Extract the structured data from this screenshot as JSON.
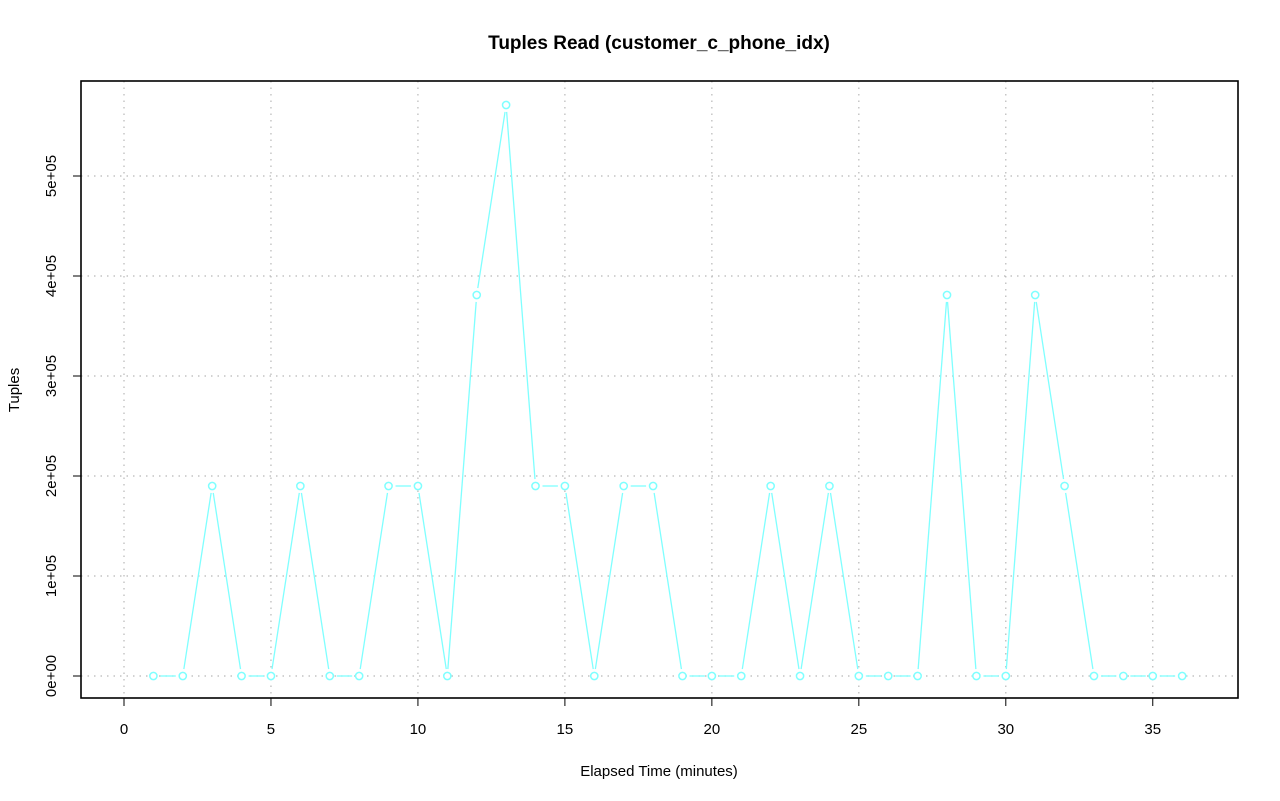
{
  "chart_data": {
    "type": "line",
    "title": "Tuples Read (customer_c_phone_idx)",
    "xlabel": "Elapsed Time (minutes)",
    "ylabel": "Tuples",
    "xlim": [
      0,
      37.9
    ],
    "ylim": [
      -22000,
      595000
    ],
    "x_ticks": [
      0,
      5,
      10,
      15,
      20,
      25,
      30,
      35
    ],
    "x_tick_labels": [
      "0",
      "5",
      "10",
      "15",
      "20",
      "25",
      "30",
      "35"
    ],
    "y_ticks": [
      0,
      100000,
      200000,
      300000,
      400000,
      500000
    ],
    "y_tick_labels": [
      "0e+00",
      "1e+05",
      "2e+05",
      "3e+05",
      "4e+05",
      "5e+05"
    ],
    "grid": true,
    "series": [
      {
        "color": "#7fffff",
        "marker": "open-circle",
        "x": [
          1,
          2,
          3,
          4,
          5,
          6,
          7,
          8,
          9,
          10,
          11,
          12,
          13,
          14,
          15,
          16,
          17,
          18,
          19,
          20,
          21,
          22,
          23,
          24,
          25,
          26,
          27,
          28,
          29,
          30,
          31,
          32,
          33,
          34,
          35,
          36
        ],
        "values": [
          0,
          0,
          190000,
          0,
          0,
          190000,
          0,
          0,
          190000,
          190000,
          0,
          381000,
          571000,
          190000,
          190000,
          0,
          190000,
          190000,
          0,
          0,
          0,
          190000,
          0,
          190000,
          0,
          0,
          0,
          381000,
          0,
          0,
          381000,
          190000,
          0,
          0,
          0,
          0
        ]
      }
    ]
  }
}
